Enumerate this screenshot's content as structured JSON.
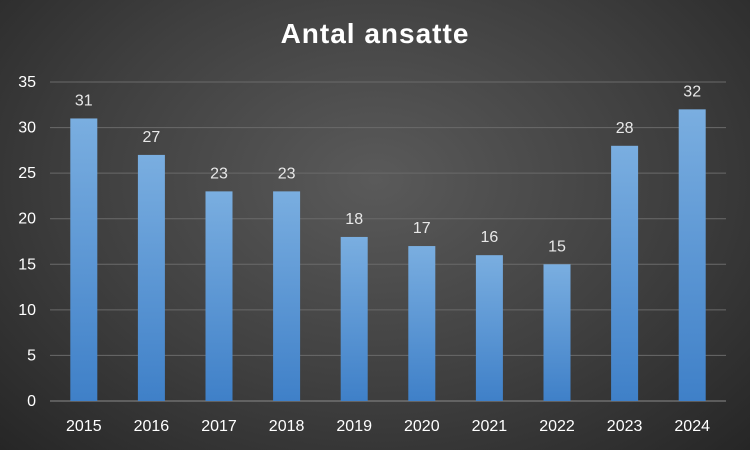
{
  "chart_data": {
    "type": "bar",
    "title": "Antal ansatte",
    "categories": [
      "2015",
      "2016",
      "2017",
      "2018",
      "2019",
      "2020",
      "2021",
      "2022",
      "2023",
      "2024"
    ],
    "values": [
      31,
      27,
      23,
      23,
      18,
      17,
      16,
      15,
      28,
      32
    ],
    "ylim": [
      0,
      35
    ],
    "yticks": [
      0,
      5,
      10,
      15,
      20,
      25,
      30,
      35
    ],
    "xlabel": "",
    "ylabel": "",
    "grid": true,
    "legend": "none",
    "colors": {
      "bar_top": "#7aaee0",
      "bar_bottom": "#3f80c8",
      "gridline": "#6a6a6a",
      "text": "#ffffff"
    }
  }
}
